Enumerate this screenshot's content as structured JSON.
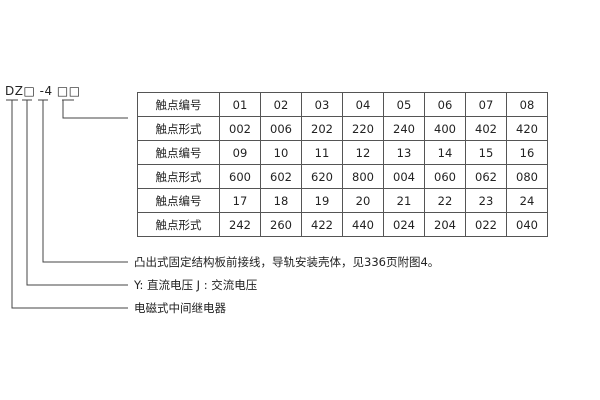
{
  "model_code": "DZ□ -4 □□",
  "table": {
    "rows": [
      {
        "label": "触点编号",
        "values": [
          "01",
          "02",
          "03",
          "04",
          "05",
          "06",
          "07",
          "08"
        ]
      },
      {
        "label": "触点形式",
        "values": [
          "002",
          "006",
          "202",
          "220",
          "240",
          "400",
          "402",
          "420"
        ]
      },
      {
        "label": "触点编号",
        "values": [
          "09",
          "10",
          "11",
          "12",
          "13",
          "14",
          "15",
          "16"
        ]
      },
      {
        "label": "触点形式",
        "values": [
          "600",
          "602",
          "620",
          "800",
          "004",
          "060",
          "062",
          "080"
        ]
      },
      {
        "label": "触点编号",
        "values": [
          "17",
          "18",
          "19",
          "20",
          "21",
          "22",
          "23",
          "24"
        ]
      },
      {
        "label": "触点形式",
        "values": [
          "242",
          "260",
          "422",
          "440",
          "024",
          "204",
          "022",
          "040"
        ]
      }
    ]
  },
  "notes": [
    "凸出式固定结构板前接线，导轨安装壳体，见336页附图4。",
    "Y: 直流电压   J : 交流电压",
    "电磁式中间继电器"
  ]
}
